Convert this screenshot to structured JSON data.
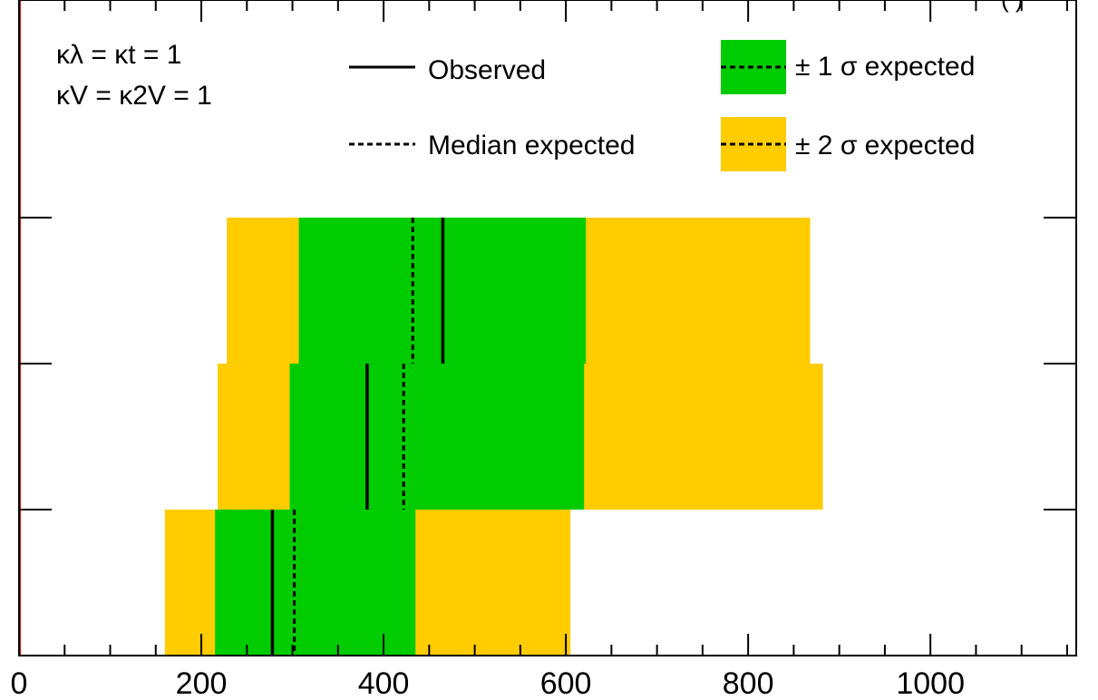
{
  "chart_data": {
    "type": "bar",
    "chart_kind": "horizontal expected/observed limit bands",
    "x": {
      "range": [
        0,
        1160
      ],
      "tick_labels": [
        "0",
        "200",
        "400",
        "600",
        "800",
        "1000"
      ],
      "tick_values": [
        0,
        200,
        400,
        600,
        800,
        1000
      ],
      "minor_step": 50
    },
    "rows": [
      {
        "minus2": 160,
        "minus1": 215,
        "median": 302,
        "plus1": 435,
        "plus2": 605,
        "observed": 278
      },
      {
        "minus2": 218,
        "minus1": 297,
        "median": 422,
        "plus1": 620,
        "plus2": 882,
        "observed": 382
      },
      {
        "minus2": 228,
        "minus1": 307,
        "median": 432,
        "plus1": 622,
        "plus2": 868,
        "observed": 465
      }
    ],
    "reference_line": {
      "x": 0,
      "color": "#ff0000"
    },
    "colors": {
      "band_1sigma": "#00cc00",
      "band_2sigma": "#ffcc00",
      "lines": "#000000"
    },
    "legend": {
      "placement": "top",
      "observed": "Observed",
      "median": "Median expected",
      "sigma1": "± 1 σ expected",
      "sigma2": "± 2 σ expected"
    },
    "annotation": {
      "line1": "κλ = κt = 1",
      "line2": "κV = κ2V = 1"
    },
    "corner_fragment": "(     )",
    "grid": false
  }
}
